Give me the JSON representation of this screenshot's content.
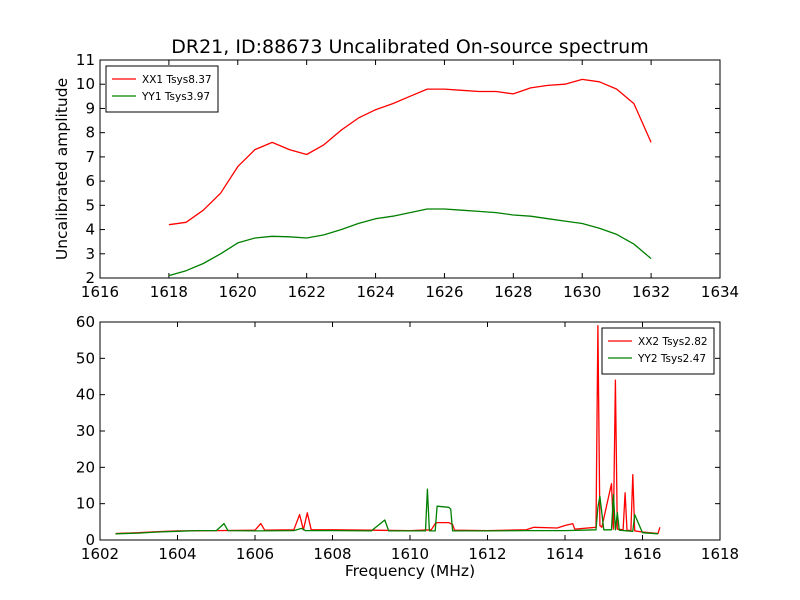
{
  "figure": {
    "title": "DR21, ID:88673 Uncalibrated On-source spectrum",
    "xlabel": "Frequency (MHz)"
  },
  "chart_data": [
    {
      "type": "line",
      "title": "DR21, ID:88673 Uncalibrated On-source spectrum",
      "xlabel": "",
      "ylabel": "Uncalibrated amplitude",
      "xlim": [
        1616,
        1634
      ],
      "ylim": [
        2,
        11
      ],
      "xticks": [
        1616,
        1618,
        1620,
        1622,
        1624,
        1626,
        1628,
        1630,
        1632,
        1634
      ],
      "yticks": [
        2,
        3,
        4,
        5,
        6,
        7,
        8,
        9,
        10,
        11
      ],
      "legend": "top-left",
      "grid": false,
      "series": [
        {
          "name": "XX1 Tsys8.37",
          "color": "#ff0000",
          "x": [
            1618.0,
            1618.5,
            1619.0,
            1619.5,
            1620.0,
            1620.5,
            1621.0,
            1621.5,
            1622.0,
            1622.5,
            1623.0,
            1623.5,
            1624.0,
            1624.5,
            1625.0,
            1625.5,
            1626.0,
            1626.5,
            1627.0,
            1627.5,
            1628.0,
            1628.5,
            1629.0,
            1629.5,
            1630.0,
            1630.5,
            1631.0,
            1631.5,
            1632.0
          ],
          "y": [
            4.2,
            4.3,
            4.8,
            5.5,
            6.6,
            7.3,
            7.6,
            7.3,
            7.1,
            7.5,
            8.1,
            8.6,
            8.95,
            9.2,
            9.5,
            9.8,
            9.8,
            9.75,
            9.7,
            9.7,
            9.6,
            9.85,
            9.95,
            10.0,
            10.2,
            10.1,
            9.8,
            9.2,
            7.6
          ]
        },
        {
          "name": "YY1 Tsys3.97",
          "color": "#008000",
          "x": [
            1618.0,
            1618.5,
            1619.0,
            1619.5,
            1620.0,
            1620.5,
            1621.0,
            1621.5,
            1622.0,
            1622.5,
            1623.0,
            1623.5,
            1624.0,
            1624.5,
            1625.0,
            1625.5,
            1626.0,
            1626.5,
            1627.0,
            1627.5,
            1628.0,
            1628.5,
            1629.0,
            1629.5,
            1630.0,
            1630.5,
            1631.0,
            1631.5,
            1632.0
          ],
          "y": [
            2.1,
            2.3,
            2.6,
            3.0,
            3.45,
            3.65,
            3.72,
            3.7,
            3.65,
            3.78,
            4.0,
            4.25,
            4.45,
            4.55,
            4.7,
            4.85,
            4.85,
            4.8,
            4.75,
            4.7,
            4.6,
            4.55,
            4.45,
            4.35,
            4.25,
            4.05,
            3.8,
            3.4,
            2.8
          ]
        }
      ]
    },
    {
      "type": "line",
      "title": "",
      "xlabel": "Frequency (MHz)",
      "ylabel": "",
      "xlim": [
        1602,
        1618
      ],
      "ylim": [
        0,
        60
      ],
      "xticks": [
        1602,
        1604,
        1606,
        1608,
        1610,
        1612,
        1614,
        1616,
        1618
      ],
      "yticks": [
        0,
        10,
        20,
        30,
        40,
        50,
        60
      ],
      "legend": "top-right",
      "grid": false,
      "series": [
        {
          "name": "XX2 Tsys2.82",
          "color": "#ff0000",
          "x": [
            1602.4,
            1603.0,
            1603.5,
            1604.0,
            1605.0,
            1606.0,
            1606.15,
            1606.25,
            1607.0,
            1607.15,
            1607.25,
            1607.35,
            1607.45,
            1608.0,
            1609.0,
            1610.0,
            1610.55,
            1610.65,
            1610.7,
            1611.0,
            1611.1,
            1611.15,
            1612.0,
            1613.0,
            1613.2,
            1613.8,
            1614.0,
            1614.2,
            1614.25,
            1614.8,
            1614.85,
            1614.9,
            1614.95,
            1615.2,
            1615.25,
            1615.3,
            1615.35,
            1615.5,
            1615.55,
            1615.6,
            1615.7,
            1615.75,
            1615.8,
            1616.0,
            1616.4,
            1616.45
          ],
          "y": [
            1.8,
            2.0,
            2.3,
            2.5,
            2.6,
            2.7,
            4.5,
            2.7,
            2.8,
            7.0,
            2.8,
            7.5,
            2.8,
            2.8,
            2.7,
            2.6,
            2.8,
            4.5,
            4.8,
            4.8,
            4.2,
            2.7,
            2.6,
            2.8,
            3.5,
            3.3,
            4.0,
            4.5,
            3.0,
            3.5,
            59.0,
            4.0,
            3.5,
            15.5,
            3.0,
            44.0,
            3.0,
            2.8,
            13.0,
            2.7,
            2.6,
            18.0,
            2.5,
            2.2,
            1.8,
            3.5
          ]
        },
        {
          "name": "YY2 Tsys2.47",
          "color": "#008000",
          "x": [
            1602.4,
            1603.0,
            1603.5,
            1604.0,
            1604.5,
            1605.0,
            1605.2,
            1605.3,
            1606.0,
            1607.0,
            1607.2,
            1607.3,
            1608.0,
            1609.0,
            1609.35,
            1609.45,
            1610.0,
            1610.4,
            1610.45,
            1610.5,
            1610.65,
            1610.7,
            1611.0,
            1611.05,
            1611.1,
            1612.0,
            1613.0,
            1614.0,
            1614.8,
            1614.85,
            1614.9,
            1615.0,
            1615.2,
            1615.25,
            1615.3,
            1615.35,
            1615.4,
            1615.75,
            1615.8,
            1616.0,
            1616.4
          ],
          "y": [
            1.7,
            1.9,
            2.2,
            2.4,
            2.6,
            2.6,
            4.5,
            2.6,
            2.5,
            2.6,
            3.2,
            2.6,
            2.6,
            2.5,
            5.5,
            2.5,
            2.5,
            2.5,
            14.0,
            2.5,
            2.5,
            9.3,
            9.0,
            8.5,
            2.5,
            2.5,
            2.6,
            2.6,
            2.8,
            9.0,
            12.0,
            2.8,
            2.8,
            12.5,
            2.8,
            7.5,
            2.7,
            2.4,
            7.0,
            2.0,
            1.7
          ]
        }
      ]
    }
  ]
}
